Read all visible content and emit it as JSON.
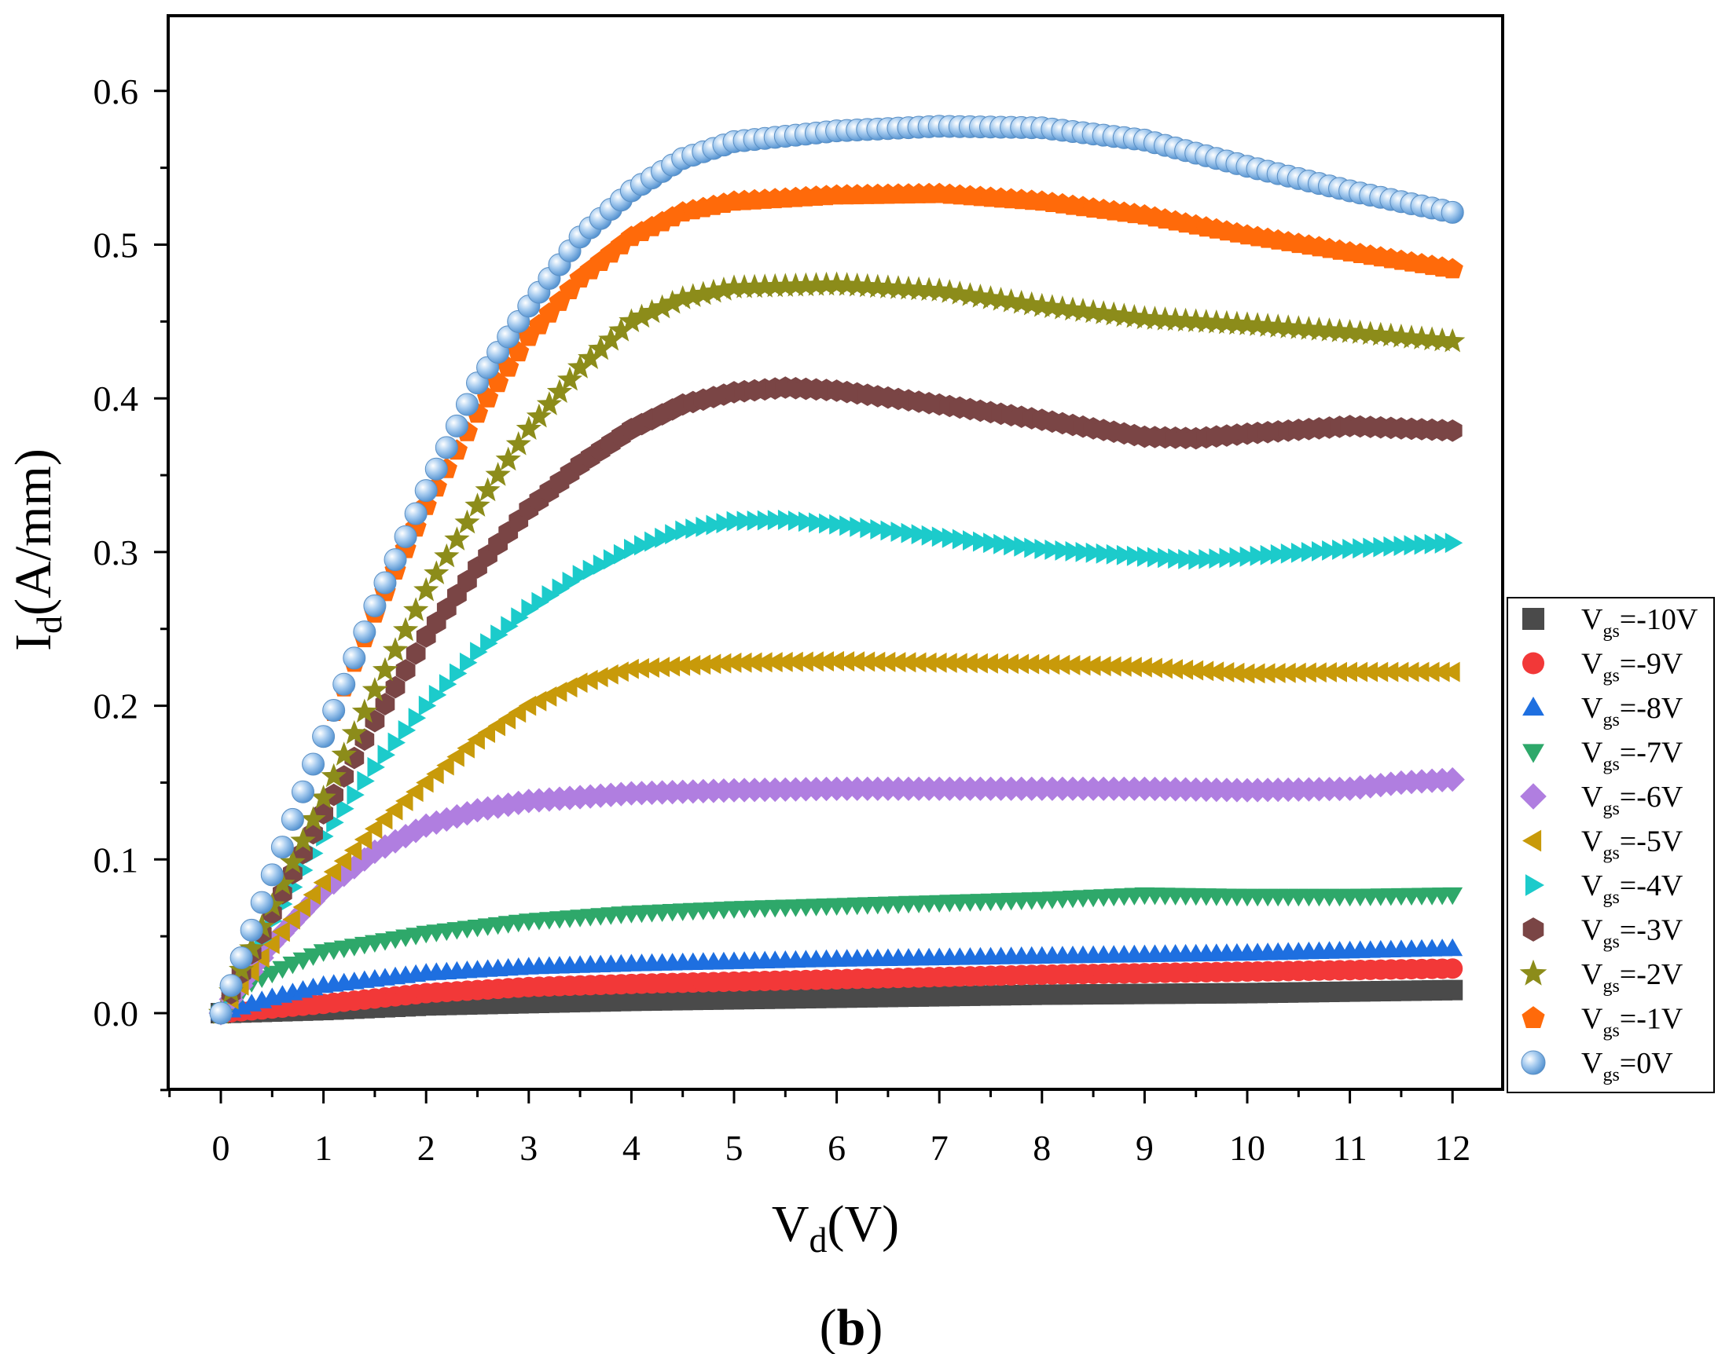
{
  "chart_data": {
    "type": "scatter",
    "xlabel": {
      "main": "V",
      "sub": "d",
      "rest": "(V)"
    },
    "ylabel": {
      "main": "I",
      "sub": "d",
      "rest": "(A/mm)"
    },
    "caption": {
      "open": "(",
      "bold": "b",
      "close": ")"
    },
    "xlim": [
      -0.5,
      12.4
    ],
    "ylim": [
      -0.05,
      0.65
    ],
    "xticks": [
      0,
      1,
      2,
      3,
      4,
      5,
      6,
      7,
      8,
      9,
      10,
      11,
      12
    ],
    "xtick_labels": [
      "0",
      "1",
      "2",
      "3",
      "4",
      "5",
      "6",
      "7",
      "8",
      "9",
      "10",
      "11",
      "12"
    ],
    "yticks": [
      0.0,
      0.1,
      0.2,
      0.3,
      0.4,
      0.5,
      0.6
    ],
    "ytick_labels": [
      "0.0",
      "0.1",
      "0.2",
      "0.3",
      "0.4",
      "0.5",
      "0.6"
    ],
    "legend_position": "right-bottom-outside",
    "series": [
      {
        "name": "Vgs=-10V",
        "label": {
          "v": "V",
          "sub": "gs",
          "val": "=-10V"
        },
        "marker": "square",
        "color": "#4a4a4a",
        "points": [
          [
            0,
            0
          ],
          [
            1,
            0.002
          ],
          [
            2,
            0.005
          ],
          [
            4,
            0.008
          ],
          [
            6,
            0.01
          ],
          [
            8,
            0.012
          ],
          [
            10,
            0.013
          ],
          [
            12,
            0.015
          ]
        ]
      },
      {
        "name": "Vgs=-9V",
        "label": {
          "v": "V",
          "sub": "gs",
          "val": "=-9V"
        },
        "marker": "circle",
        "color": "#f23838",
        "points": [
          [
            0,
            0
          ],
          [
            1,
            0.006
          ],
          [
            2,
            0.013
          ],
          [
            3,
            0.017
          ],
          [
            4,
            0.019
          ],
          [
            6,
            0.022
          ],
          [
            8,
            0.025
          ],
          [
            10,
            0.027
          ],
          [
            12,
            0.029
          ]
        ]
      },
      {
        "name": "Vgs=-8V",
        "label": {
          "v": "V",
          "sub": "gs",
          "val": "=-8V"
        },
        "marker": "triangle-up",
        "color": "#1e6fe0",
        "points": [
          [
            0,
            0
          ],
          [
            0.5,
            0.01
          ],
          [
            1,
            0.018
          ],
          [
            2,
            0.026
          ],
          [
            3,
            0.03
          ],
          [
            4,
            0.032
          ],
          [
            6,
            0.035
          ],
          [
            8,
            0.037
          ],
          [
            10,
            0.039
          ],
          [
            12,
            0.042
          ]
        ]
      },
      {
        "name": "Vgs=-7V",
        "label": {
          "v": "V",
          "sub": "gs",
          "val": "=-7V"
        },
        "marker": "triangle-down",
        "color": "#2ea86a",
        "points": [
          [
            0,
            0
          ],
          [
            0.3,
            0.02
          ],
          [
            0.7,
            0.032
          ],
          [
            1,
            0.04
          ],
          [
            2,
            0.052
          ],
          [
            3,
            0.06
          ],
          [
            4,
            0.065
          ],
          [
            5,
            0.068
          ],
          [
            6,
            0.07
          ],
          [
            7,
            0.072
          ],
          [
            8,
            0.074
          ],
          [
            9,
            0.077
          ],
          [
            10,
            0.076
          ],
          [
            11,
            0.076
          ],
          [
            12,
            0.077
          ]
        ]
      },
      {
        "name": "Vgs=-6V",
        "label": {
          "v": "V",
          "sub": "gs",
          "val": "=-6V"
        },
        "marker": "diamond",
        "color": "#b07ee0",
        "points": [
          [
            0,
            0
          ],
          [
            0.5,
            0.045
          ],
          [
            1,
            0.08
          ],
          [
            1.5,
            0.105
          ],
          [
            2,
            0.122
          ],
          [
            2.5,
            0.132
          ],
          [
            3,
            0.138
          ],
          [
            4,
            0.143
          ],
          [
            5,
            0.145
          ],
          [
            6,
            0.146
          ],
          [
            7,
            0.146
          ],
          [
            8,
            0.146
          ],
          [
            9,
            0.146
          ],
          [
            10,
            0.145
          ],
          [
            11,
            0.146
          ],
          [
            11.5,
            0.15
          ],
          [
            12,
            0.152
          ]
        ]
      },
      {
        "name": "Vgs=-5V",
        "label": {
          "v": "V",
          "sub": "gs",
          "val": "=-5V"
        },
        "marker": "triangle-left",
        "color": "#c89a0a",
        "points": [
          [
            0,
            0
          ],
          [
            0.5,
            0.045
          ],
          [
            1,
            0.085
          ],
          [
            1.5,
            0.12
          ],
          [
            2,
            0.15
          ],
          [
            2.5,
            0.178
          ],
          [
            3,
            0.2
          ],
          [
            3.5,
            0.215
          ],
          [
            4,
            0.224
          ],
          [
            5,
            0.228
          ],
          [
            6,
            0.229
          ],
          [
            7,
            0.228
          ],
          [
            8,
            0.227
          ],
          [
            9,
            0.225
          ],
          [
            10,
            0.221
          ],
          [
            11,
            0.222
          ],
          [
            12,
            0.222
          ]
        ]
      },
      {
        "name": "Vgs=-4V",
        "label": {
          "v": "V",
          "sub": "gs",
          "val": "=-4V"
        },
        "marker": "triangle-right",
        "color": "#1ccbcb",
        "points": [
          [
            0,
            0
          ],
          [
            0.5,
            0.06
          ],
          [
            1,
            0.115
          ],
          [
            1.5,
            0.16
          ],
          [
            2,
            0.2
          ],
          [
            2.5,
            0.235
          ],
          [
            3,
            0.263
          ],
          [
            3.5,
            0.285
          ],
          [
            4,
            0.302
          ],
          [
            4.5,
            0.314
          ],
          [
            5,
            0.32
          ],
          [
            5.5,
            0.321
          ],
          [
            6,
            0.318
          ],
          [
            7,
            0.31
          ],
          [
            8,
            0.302
          ],
          [
            9,
            0.297
          ],
          [
            9.5,
            0.295
          ],
          [
            10,
            0.297
          ],
          [
            11,
            0.302
          ],
          [
            12,
            0.306
          ]
        ]
      },
      {
        "name": "Vgs=-3V",
        "label": {
          "v": "V",
          "sub": "gs",
          "val": "=-3V"
        },
        "marker": "hexagon",
        "color": "#7a4545",
        "points": [
          [
            0,
            0
          ],
          [
            0.5,
            0.065
          ],
          [
            1,
            0.13
          ],
          [
            1.5,
            0.19
          ],
          [
            2,
            0.245
          ],
          [
            2.5,
            0.29
          ],
          [
            3,
            0.328
          ],
          [
            3.5,
            0.357
          ],
          [
            4,
            0.38
          ],
          [
            4.5,
            0.396
          ],
          [
            5,
            0.404
          ],
          [
            5.5,
            0.407
          ],
          [
            6,
            0.405
          ],
          [
            7,
            0.396
          ],
          [
            8,
            0.386
          ],
          [
            9,
            0.375
          ],
          [
            9.5,
            0.374
          ],
          [
            10,
            0.377
          ],
          [
            11,
            0.382
          ],
          [
            12,
            0.379
          ]
        ]
      },
      {
        "name": "Vgs=-2V",
        "label": {
          "v": "V",
          "sub": "gs",
          "val": "=-2V"
        },
        "marker": "star",
        "color": "#8c8c1a",
        "points": [
          [
            0,
            0
          ],
          [
            0.5,
            0.07
          ],
          [
            1,
            0.14
          ],
          [
            1.5,
            0.21
          ],
          [
            2,
            0.275
          ],
          [
            2.5,
            0.33
          ],
          [
            3,
            0.38
          ],
          [
            3.5,
            0.42
          ],
          [
            4,
            0.45
          ],
          [
            4.5,
            0.465
          ],
          [
            5,
            0.472
          ],
          [
            6,
            0.474
          ],
          [
            7,
            0.47
          ],
          [
            8,
            0.46
          ],
          [
            9,
            0.452
          ],
          [
            10,
            0.448
          ],
          [
            11,
            0.443
          ],
          [
            12,
            0.437
          ]
        ]
      },
      {
        "name": "Vgs=-1V",
        "label": {
          "v": "V",
          "sub": "gs",
          "val": "=-1V"
        },
        "marker": "pentagon",
        "color": "#ff6a0a",
        "points": [
          [
            0,
            0
          ],
          [
            0.5,
            0.09
          ],
          [
            1,
            0.18
          ],
          [
            1.5,
            0.26
          ],
          [
            2,
            0.33
          ],
          [
            2.5,
            0.39
          ],
          [
            3,
            0.44
          ],
          [
            3.5,
            0.478
          ],
          [
            4,
            0.505
          ],
          [
            4.5,
            0.521
          ],
          [
            5,
            0.528
          ],
          [
            6,
            0.532
          ],
          [
            7,
            0.533
          ],
          [
            8,
            0.528
          ],
          [
            9,
            0.519
          ],
          [
            10,
            0.506
          ],
          [
            11,
            0.495
          ],
          [
            12,
            0.484
          ]
        ]
      },
      {
        "name": "Vgs=0V",
        "label": {
          "v": "V",
          "sub": "gs",
          "val": "=0V"
        },
        "marker": "sphere",
        "color": "#6aa8de",
        "points": [
          [
            0,
            0
          ],
          [
            0.5,
            0.09
          ],
          [
            1,
            0.18
          ],
          [
            1.5,
            0.265
          ],
          [
            2,
            0.34
          ],
          [
            2.5,
            0.41
          ],
          [
            3,
            0.46
          ],
          [
            3.5,
            0.505
          ],
          [
            4,
            0.535
          ],
          [
            4.5,
            0.556
          ],
          [
            5,
            0.567
          ],
          [
            6,
            0.574
          ],
          [
            7,
            0.577
          ],
          [
            8,
            0.576
          ],
          [
            9,
            0.568
          ],
          [
            10,
            0.551
          ],
          [
            11,
            0.535
          ],
          [
            12,
            0.521
          ]
        ]
      }
    ]
  }
}
